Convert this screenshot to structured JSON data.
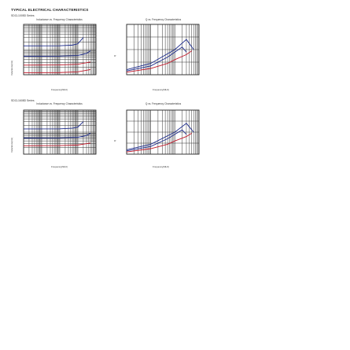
{
  "header": "TYPICAL ELECTRICAL CHARACTERISTICS",
  "sections": [
    {
      "label": "SDCL1005D Series"
    },
    {
      "label": "SDCL1608D Series"
    }
  ],
  "chart_data": [
    {
      "type": "line",
      "title": "Inductance vs. Frequency Characteristics",
      "xlabel": "Frequency(MHz)",
      "ylabel": "Inductance(nH)",
      "x_scale": "log",
      "y_scale": "log",
      "series": [
        {
          "color": "#1b2a8c",
          "label": "",
          "points": [
            [
              1,
              14
            ],
            [
              100,
              14.1
            ],
            [
              500,
              15
            ],
            [
              1000,
              17
            ],
            [
              2000,
              30
            ]
          ]
        },
        {
          "color": "#1b2a8c",
          "label": "",
          "points": [
            [
              1,
              5.4
            ],
            [
              100,
              5.5
            ],
            [
              1000,
              5.8
            ],
            [
              3000,
              7
            ],
            [
              5000,
              9
            ]
          ]
        },
        {
          "color": "#c0192a",
          "label": "",
          "points": [
            [
              1,
              2.4
            ],
            [
              100,
              2.45
            ],
            [
              1000,
              2.6
            ],
            [
              5000,
              3.2
            ]
          ]
        },
        {
          "color": "#c0192a",
          "label": "",
          "points": [
            [
              1,
              1.2
            ],
            [
              100,
              1.22
            ],
            [
              1000,
              1.3
            ],
            [
              5000,
              1.6
            ]
          ]
        }
      ],
      "grid": true
    },
    {
      "type": "line",
      "title": "Q vs. Frequency Characteristics",
      "xlabel": "Frequency(MHz)",
      "ylabel": "Q",
      "x_scale": "log",
      "series": [
        {
          "color": "#1b2a8c",
          "label": "",
          "points": [
            [
              10,
              3
            ],
            [
              100,
              7
            ],
            [
              500,
              14
            ],
            [
              1000,
              18
            ],
            [
              2000,
              22
            ],
            [
              3000,
              18
            ]
          ]
        },
        {
          "color": "#c0192a",
          "label": "",
          "points": [
            [
              10,
              2
            ],
            [
              100,
              5
            ],
            [
              500,
              9
            ],
            [
              1000,
              12
            ],
            [
              3000,
              16
            ],
            [
              5000,
              19
            ]
          ]
        },
        {
          "color": "#1b2a8c",
          "label": "",
          "points": [
            [
              10,
              4
            ],
            [
              100,
              9
            ],
            [
              1000,
              20
            ],
            [
              3000,
              28
            ],
            [
              6000,
              20
            ]
          ]
        }
      ],
      "grid": true
    },
    {
      "type": "line",
      "title": "Inductance vs. Frequency Characteristics",
      "xlabel": "Frequency(MHz)",
      "ylabel": "Inductance(nH)",
      "x_scale": "log",
      "y_scale": "log",
      "series": [
        {
          "color": "#1b2a8c",
          "label": "",
          "points": [
            [
              1,
              14
            ],
            [
              100,
              14.1
            ],
            [
              500,
              15
            ],
            [
              1000,
              17
            ],
            [
              2000,
              30
            ]
          ]
        },
        {
          "color": "#1b2a8c",
          "label": "",
          "points": [
            [
              1,
              5.4
            ],
            [
              100,
              5.5
            ],
            [
              1000,
              5.8
            ],
            [
              3000,
              7
            ],
            [
              5000,
              9
            ]
          ]
        },
        {
          "color": "#c0192a",
          "label": "",
          "points": [
            [
              1,
              2.4
            ],
            [
              100,
              2.45
            ],
            [
              1000,
              2.6
            ],
            [
              5000,
              3.2
            ]
          ]
        }
      ],
      "grid": true
    },
    {
      "type": "line",
      "title": "Q vs. Frequency Characteristics",
      "xlabel": "Frequency(MHz)",
      "ylabel": "Q",
      "x_scale": "log",
      "series": [
        {
          "color": "#1b2a8c",
          "label": "",
          "points": [
            [
              10,
              3
            ],
            [
              100,
              7
            ],
            [
              500,
              14
            ],
            [
              1000,
              18
            ],
            [
              2000,
              22
            ],
            [
              3000,
              18
            ]
          ]
        },
        {
          "color": "#c0192a",
          "label": "",
          "points": [
            [
              10,
              2
            ],
            [
              100,
              5
            ],
            [
              500,
              9
            ],
            [
              1000,
              12
            ],
            [
              3000,
              16
            ],
            [
              5000,
              19
            ]
          ]
        },
        {
          "color": "#1b2a8c",
          "label": "",
          "points": [
            [
              10,
              4
            ],
            [
              100,
              9
            ],
            [
              1000,
              20
            ],
            [
              3000,
              28
            ],
            [
              6000,
              20
            ]
          ]
        }
      ],
      "grid": true
    }
  ]
}
